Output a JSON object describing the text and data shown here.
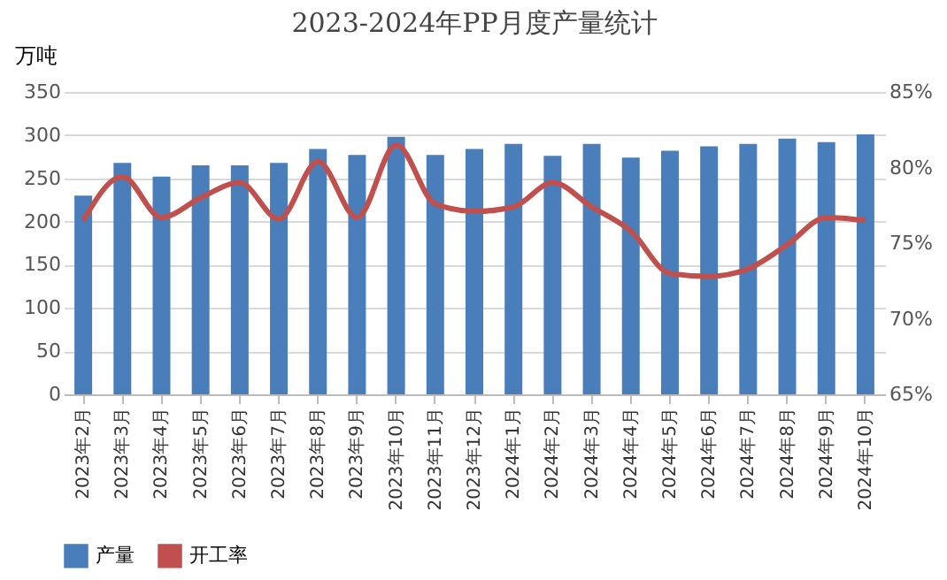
{
  "chart_data": {
    "type": "bar",
    "title": "2023-2024年PP月度产量统计",
    "ylabel": "万吨",
    "categories": [
      "2023年2月",
      "2023年3月",
      "2023年4月",
      "2023年5月",
      "2023年6月",
      "2023年7月",
      "2023年8月",
      "2023年9月",
      "2023年10月",
      "2023年11月",
      "2023年12月",
      "2024年1月",
      "2024年2月",
      "2024年3月",
      "2024年4月",
      "2024年5月",
      "2024年6月",
      "2024年7月",
      "2024年8月",
      "2024年9月",
      "2024年10月"
    ],
    "series": [
      {
        "name": "产量",
        "color": "#4a7ebb",
        "values": [
          230,
          268,
          252,
          265,
          265,
          268,
          284,
          277,
          298,
          277,
          284,
          290,
          276,
          290,
          274,
          282,
          287,
          290,
          296,
          292,
          301
        ]
      },
      {
        "name": "开工率",
        "type": "line",
        "axis": "y2",
        "color": "#c0504d",
        "values": [
          76.5,
          79.4,
          76.7,
          78.0,
          79.0,
          76.6,
          80.4,
          76.7,
          81.5,
          77.6,
          77.1,
          77.4,
          79.0,
          77.4,
          75.8,
          73.0,
          72.8,
          73.3,
          74.9,
          76.7,
          76.5
        ]
      }
    ],
    "ylim": [
      0,
      350
    ],
    "yticks": [
      0,
      50,
      100,
      150,
      200,
      250,
      300,
      350
    ],
    "y2lim": [
      65,
      85
    ],
    "y2ticks": [
      {
        "value": 65,
        "label": "65%"
      },
      {
        "value": 70,
        "label": "70%"
      },
      {
        "value": 75,
        "label": "75%"
      },
      {
        "value": 80,
        "label": "80%"
      },
      {
        "value": 85,
        "label": "85%"
      }
    ],
    "grid": "y",
    "legend": "bottom"
  }
}
